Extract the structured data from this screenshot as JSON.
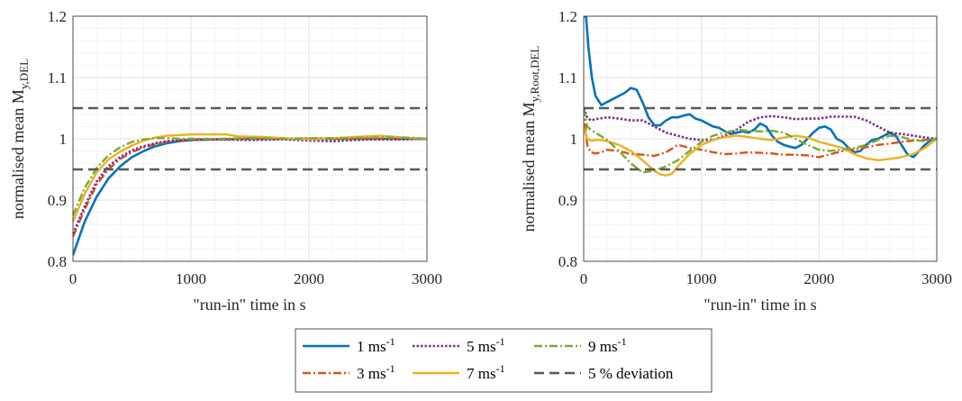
{
  "chart_data": [
    {
      "type": "line",
      "title": "",
      "xlabel": "\"run-in\" time in s",
      "ylabel_main": "normalised mean M",
      "ylabel_sub": "y,DEL",
      "xlim": [
        0,
        3000
      ],
      "ylim": [
        0.8,
        1.2
      ],
      "xticks": [
        "0",
        "1000",
        "2000",
        "3000"
      ],
      "yticks": [
        "0.8",
        "0.9",
        "1",
        "1.1",
        "1.2"
      ],
      "grid": true,
      "series": [
        {
          "name": "1 m s-1",
          "x": [
            0,
            100,
            200,
            300,
            400,
            500,
            600,
            700,
            800,
            900,
            1000,
            1200,
            1500,
            2000,
            2500,
            3000
          ],
          "values": [
            0.81,
            0.865,
            0.905,
            0.935,
            0.955,
            0.97,
            0.98,
            0.988,
            0.993,
            0.996,
            0.998,
            0.999,
            1.0,
            1.0,
            1.0,
            1.0
          ]
        },
        {
          "name": "3 m s-1",
          "x": [
            0,
            100,
            200,
            300,
            400,
            500,
            600,
            700,
            800,
            900,
            1000,
            1200,
            1500,
            2000,
            2500,
            3000
          ],
          "values": [
            0.84,
            0.885,
            0.925,
            0.95,
            0.967,
            0.978,
            0.986,
            0.991,
            0.995,
            0.997,
            0.998,
            0.999,
            1.0,
            1.0,
            1.0,
            1.0
          ]
        },
        {
          "name": "5 m s-1",
          "x": [
            0,
            100,
            200,
            300,
            400,
            500,
            600,
            700,
            800,
            900,
            1000,
            1200,
            1500,
            1800,
            2000,
            2200,
            2500,
            2800,
            3000
          ],
          "values": [
            0.845,
            0.89,
            0.93,
            0.955,
            0.97,
            0.981,
            0.988,
            0.993,
            0.996,
            0.998,
            0.999,
            0.999,
            0.998,
            0.999,
            0.997,
            0.996,
            0.999,
            0.999,
            1.0
          ]
        },
        {
          "name": "7 m s-1",
          "x": [
            0,
            100,
            200,
            300,
            400,
            500,
            600,
            700,
            800,
            900,
            1000,
            1100,
            1200,
            1300,
            1400,
            1600,
            1800,
            2000,
            2200,
            2400,
            2600,
            2800,
            3000
          ],
          "values": [
            0.865,
            0.91,
            0.945,
            0.966,
            0.979,
            0.989,
            0.997,
            1.002,
            1.005,
            1.006,
            1.007,
            1.007,
            1.007,
            1.007,
            1.004,
            1.003,
            1.001,
            0.999,
            1.001,
            1.003,
            1.005,
            1.002,
            1.0
          ]
        },
        {
          "name": "9 m s-1",
          "x": [
            0,
            100,
            200,
            300,
            400,
            500,
            600,
            700,
            800,
            900,
            1000,
            1200,
            1500,
            1800,
            2000,
            2300,
            2600,
            2800,
            3000
          ],
          "values": [
            0.875,
            0.92,
            0.952,
            0.973,
            0.986,
            0.995,
            0.999,
            1.001,
            1.001,
            1.0,
            1.0,
            1.0,
            1.001,
            1.0,
            1.001,
            1.001,
            1.002,
            1.002,
            1.0
          ]
        },
        {
          "name": "5 % deviation (upper)",
          "x": [
            0,
            3000
          ],
          "values": [
            1.05,
            1.05
          ]
        },
        {
          "name": "5 % deviation (lower)",
          "x": [
            0,
            3000
          ],
          "values": [
            0.95,
            0.95
          ]
        }
      ]
    },
    {
      "type": "line",
      "title": "",
      "xlabel": "\"run-in\" time in s",
      "ylabel_main": "normalised mean M",
      "ylabel_sub": "y,Root,DEL",
      "xlim": [
        0,
        3000
      ],
      "ylim": [
        0.8,
        1.2
      ],
      "xticks": [
        "0",
        "1000",
        "2000",
        "3000"
      ],
      "yticks": [
        "0.8",
        "0.9",
        "1",
        "1.1",
        "1.2"
      ],
      "grid": true,
      "series": [
        {
          "name": "1 m s-1",
          "x": [
            0,
            20,
            40,
            70,
            100,
            150,
            200,
            250,
            300,
            350,
            400,
            450,
            500,
            550,
            600,
            650,
            700,
            750,
            800,
            850,
            900,
            950,
            1000,
            1050,
            1100,
            1150,
            1200,
            1250,
            1300,
            1350,
            1400,
            1450,
            1500,
            1550,
            1600,
            1650,
            1700,
            1750,
            1800,
            1850,
            1900,
            1950,
            2000,
            2050,
            2100,
            2150,
            2200,
            2250,
            2300,
            2350,
            2400,
            2450,
            2500,
            2550,
            2600,
            2650,
            2700,
            2750,
            2800,
            2850,
            2900,
            2950,
            3000
          ],
          "values": [
            1.2,
            1.2,
            1.15,
            1.1,
            1.07,
            1.055,
            1.06,
            1.065,
            1.07,
            1.075,
            1.083,
            1.08,
            1.06,
            1.035,
            1.022,
            1.022,
            1.03,
            1.035,
            1.035,
            1.038,
            1.04,
            1.033,
            1.03,
            1.025,
            1.02,
            1.018,
            1.012,
            1.008,
            1.01,
            1.012,
            1.01,
            1.015,
            1.025,
            1.02,
            1.005,
            0.995,
            0.99,
            0.987,
            0.985,
            0.99,
            1.0,
            1.01,
            1.018,
            1.02,
            1.015,
            1.0,
            0.995,
            0.985,
            0.978,
            0.98,
            0.99,
            0.998,
            1.0,
            1.005,
            1.01,
            1.005,
            0.99,
            0.975,
            0.97,
            0.98,
            0.99,
            0.998,
            1.0
          ]
        },
        {
          "name": "3 m s-1",
          "x": [
            0,
            30,
            60,
            100,
            150,
            200,
            300,
            400,
            500,
            600,
            700,
            800,
            900,
            1000,
            1100,
            1200,
            1300,
            1400,
            1500,
            1600,
            1700,
            1800,
            1900,
            2000,
            2100,
            2200,
            2300,
            2400,
            2500,
            2600,
            2700,
            2800,
            2900,
            3000
          ],
          "values": [
            1.05,
            0.99,
            0.978,
            0.976,
            0.978,
            0.982,
            0.98,
            0.975,
            0.974,
            0.972,
            0.978,
            0.99,
            0.985,
            0.982,
            0.978,
            0.975,
            0.976,
            0.978,
            0.977,
            0.976,
            0.974,
            0.974,
            0.973,
            0.97,
            0.975,
            0.98,
            0.983,
            0.986,
            0.99,
            0.992,
            0.995,
            0.997,
            0.998,
            1.0
          ]
        },
        {
          "name": "5 m s-1",
          "x": [
            0,
            30,
            60,
            100,
            200,
            300,
            400,
            500,
            600,
            700,
            800,
            900,
            1000,
            1100,
            1200,
            1300,
            1400,
            1500,
            1600,
            1700,
            1800,
            1900,
            2000,
            2100,
            2200,
            2300,
            2400,
            2500,
            2600,
            2700,
            2800,
            2900,
            3000
          ],
          "values": [
            1.05,
            1.035,
            1.03,
            1.032,
            1.035,
            1.033,
            1.03,
            1.03,
            1.02,
            1.01,
            1.005,
            1.0,
            0.998,
            0.998,
            1.005,
            1.015,
            1.028,
            1.035,
            1.037,
            1.035,
            1.032,
            1.033,
            1.033,
            1.036,
            1.036,
            1.036,
            1.03,
            1.02,
            1.01,
            1.008,
            1.005,
            1.002,
            1.0
          ]
        },
        {
          "name": "7 m s-1",
          "x": [
            0,
            30,
            60,
            100,
            150,
            200,
            300,
            400,
            500,
            600,
            650,
            700,
            750,
            800,
            900,
            1000,
            1100,
            1200,
            1300,
            1400,
            1500,
            1600,
            1700,
            1800,
            1900,
            2000,
            2100,
            2200,
            2300,
            2400,
            2500,
            2600,
            2700,
            2800,
            2900,
            3000
          ],
          "values": [
            1.02,
            1.0,
            0.997,
            0.998,
            0.998,
            0.996,
            0.99,
            0.98,
            0.965,
            0.948,
            0.942,
            0.94,
            0.943,
            0.955,
            0.975,
            0.99,
            0.998,
            1.003,
            1.005,
            1.003,
            1.0,
            0.998,
            1.002,
            1.005,
            1.002,
            0.995,
            0.99,
            0.985,
            0.975,
            0.968,
            0.965,
            0.967,
            0.97,
            0.975,
            0.985,
            1.0
          ]
        },
        {
          "name": "9 m s-1",
          "x": [
            0,
            30,
            60,
            100,
            200,
            300,
            400,
            500,
            600,
            700,
            800,
            900,
            1000,
            1100,
            1200,
            1300,
            1400,
            1500,
            1600,
            1700,
            1800,
            1900,
            2000,
            2100,
            2200,
            2300,
            2400,
            2500,
            2600,
            2700,
            2800,
            2900,
            3000
          ],
          "values": [
            1.05,
            1.02,
            1.015,
            1.01,
            0.998,
            0.98,
            0.96,
            0.945,
            0.948,
            0.955,
            0.965,
            0.98,
            0.995,
            1.005,
            1.01,
            1.015,
            1.013,
            1.012,
            1.013,
            1.01,
            1.0,
            0.99,
            0.982,
            0.98,
            0.983,
            0.985,
            0.99,
            0.998,
            1.005,
            1.003,
            0.998,
            0.996,
            1.0
          ]
        },
        {
          "name": "5 % deviation (upper)",
          "x": [
            0,
            3000
          ],
          "values": [
            1.05,
            1.05
          ]
        },
        {
          "name": "5 % deviation (lower)",
          "x": [
            0,
            3000
          ],
          "values": [
            0.95,
            0.95
          ]
        }
      ]
    }
  ],
  "legend": {
    "entries": [
      {
        "label": "1 ms",
        "sup": "-1",
        "color": "#0072bd",
        "dash": "solid"
      },
      {
        "label": "5 ms",
        "sup": "-1",
        "color": "#7e2f8e",
        "dash": "dot"
      },
      {
        "label": "9 ms",
        "sup": "-1",
        "color": "#77ac30",
        "dash": "dashdot"
      },
      {
        "label": "3 ms",
        "sup": "-1",
        "color": "#d95319",
        "dash": "dashdot"
      },
      {
        "label": "7 ms",
        "sup": "-1",
        "color": "#edb120",
        "dash": "solid"
      },
      {
        "label": "5 % deviation",
        "sup": "",
        "color": "#595959",
        "dash": "dash"
      }
    ]
  },
  "colors": {
    "s1": "#0072bd",
    "s3": "#d95319",
    "s5": "#7e2f8e",
    "s7": "#edb120",
    "s9": "#77ac30",
    "deviation": "#595959"
  }
}
